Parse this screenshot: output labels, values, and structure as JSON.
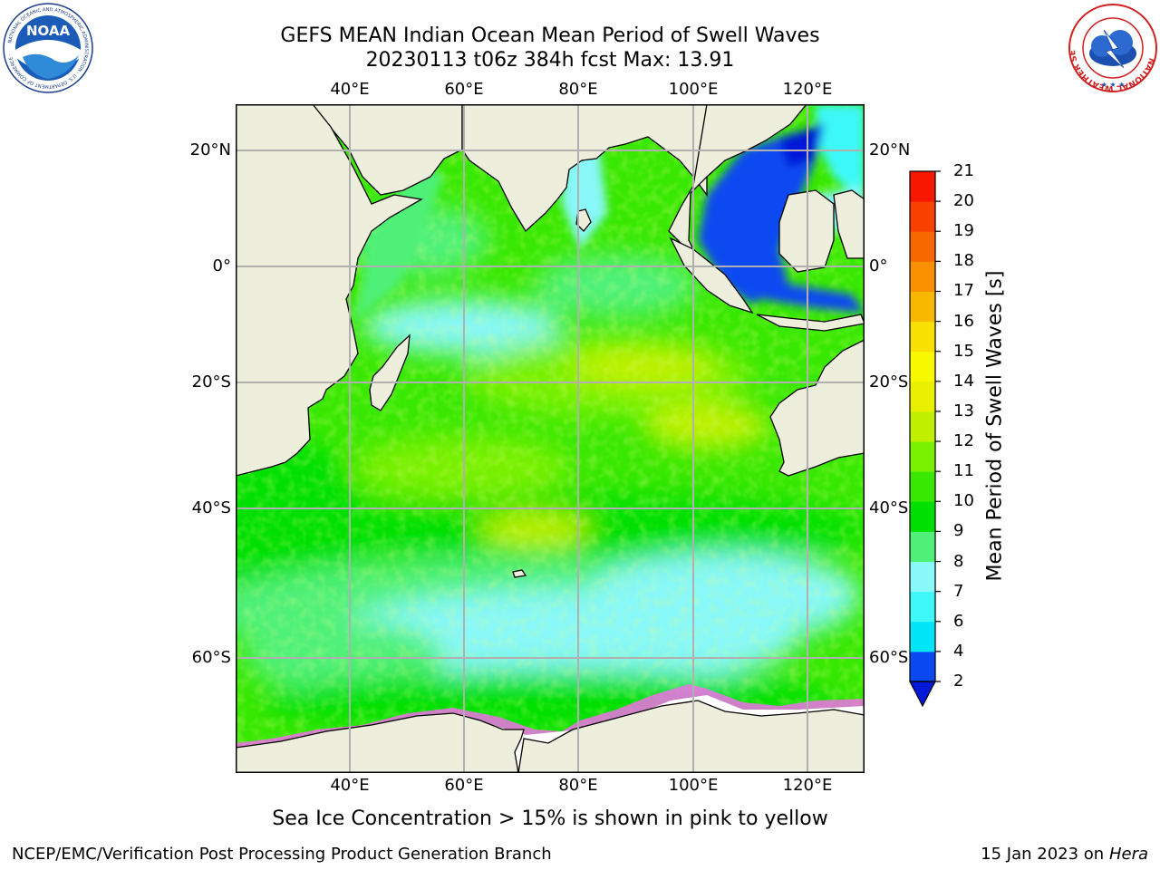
{
  "title": {
    "line1": "GEFS MEAN Indian Ocean Mean Period of Swell Waves",
    "line2": "20230113 t06z 384h fcst   Max: 13.91"
  },
  "logos": {
    "noaa_text": "NOAA",
    "noaa_ring": "NATIONAL OCEANIC AND ATMOSPHERIC ADMINISTRATION · U.S. DEPARTMENT OF COMMERCE ·",
    "nws_ring": "NATIONAL WEATHER SERVICE"
  },
  "map": {
    "lon_labels": [
      "40°E",
      "60°E",
      "80°E",
      "100°E",
      "120°E"
    ],
    "lat_labels_left": [
      "20°N",
      "0°",
      "20°S",
      "40°S",
      "60°S"
    ],
    "lat_labels_right": [
      "20°N",
      "0°",
      "20°S",
      "40°S",
      "60°S"
    ],
    "colors": {
      "land": "#eeeedd",
      "grid": "#b0b0b0",
      "sea_ice_white": "#ffffff"
    }
  },
  "colorbar": {
    "label": "Mean Period of Swell Waves [s]",
    "ticks": [
      "2",
      "4",
      "6",
      "7",
      "8",
      "9",
      "10",
      "11",
      "12",
      "13",
      "14",
      "15",
      "16",
      "17",
      "18",
      "19",
      "20",
      "21"
    ],
    "colors": [
      "#0a48f0",
      "#00e6f8",
      "#3ef8f8",
      "#88f8f8",
      "#50f078",
      "#00e000",
      "#38e800",
      "#78f000",
      "#c0f000",
      "#e8f000",
      "#f8f800",
      "#f8e000",
      "#f8b800",
      "#f89000",
      "#f86800",
      "#f84000",
      "#f81800"
    ],
    "extend_color": "#0018d8"
  },
  "note": "Sea Ice Concentration > 15% is shown in pink to yellow",
  "footer": {
    "left": "NCEP/EMC/Verification Post Processing Product Generation Branch",
    "right_date": "15 Jan 2023 on ",
    "right_host": "Hera"
  }
}
